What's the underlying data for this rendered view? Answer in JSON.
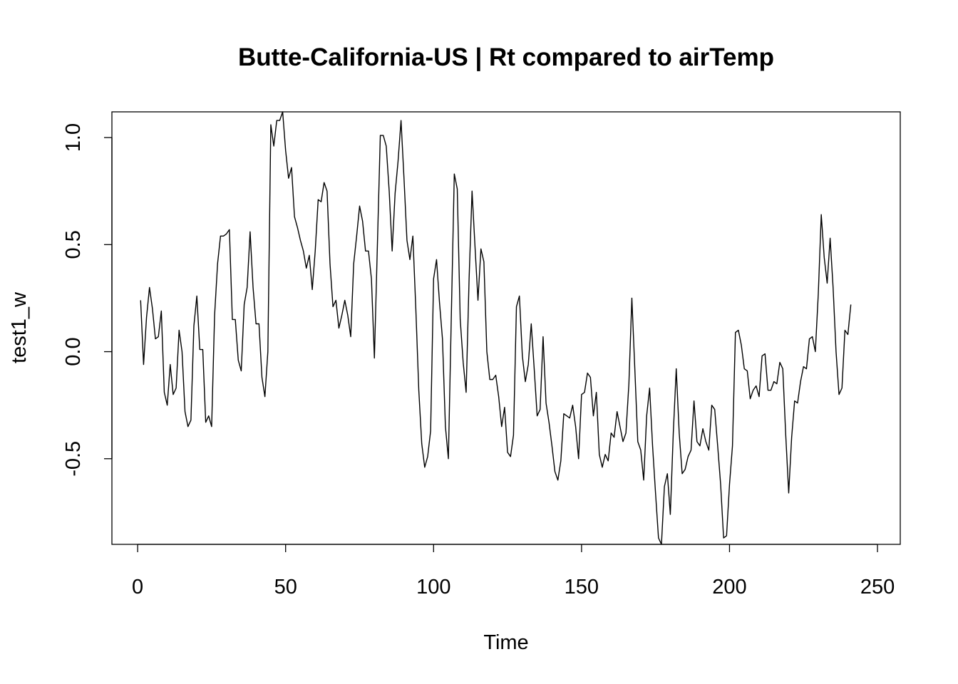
{
  "chart_data": {
    "type": "line",
    "title": "Butte-California-US | Rt compared to airTemp",
    "xlabel": "Time",
    "ylabel": "test1_w",
    "xlim": [
      -8.7,
      257.7
    ],
    "ylim": [
      -0.9,
      1.12
    ],
    "x_ticks": [
      0,
      50,
      100,
      150,
      200,
      250
    ],
    "x_tick_labels": [
      "0",
      "50",
      "100",
      "150",
      "200",
      "250"
    ],
    "y_ticks": [
      -0.5,
      0.0,
      0.5,
      1.0
    ],
    "y_tick_labels": [
      "-0.5",
      "0.0",
      "0.5",
      "1.0"
    ],
    "grid": false,
    "line_color": "#000000",
    "x_start": 1,
    "values": [
      0.24,
      -0.06,
      0.16,
      0.3,
      0.2,
      0.06,
      0.07,
      0.19,
      -0.19,
      -0.25,
      -0.06,
      -0.2,
      -0.17,
      0.1,
      0.0,
      -0.28,
      -0.35,
      -0.32,
      0.12,
      0.26,
      0.01,
      0.01,
      -0.33,
      -0.3,
      -0.35,
      0.17,
      0.41,
      0.54,
      0.54,
      0.55,
      0.57,
      0.15,
      0.15,
      -0.04,
      -0.09,
      0.22,
      0.3,
      0.56,
      0.3,
      0.13,
      0.13,
      -0.12,
      -0.21,
      0.0,
      1.06,
      0.96,
      1.08,
      1.08,
      1.12,
      0.94,
      0.81,
      0.86,
      0.63,
      0.58,
      0.52,
      0.47,
      0.39,
      0.45,
      0.29,
      0.47,
      0.71,
      0.7,
      0.79,
      0.75,
      0.41,
      0.21,
      0.24,
      0.11,
      0.17,
      0.24,
      0.17,
      0.07,
      0.41,
      0.54,
      0.68,
      0.61,
      0.47,
      0.47,
      0.34,
      -0.03,
      0.49,
      1.01,
      1.01,
      0.96,
      0.75,
      0.47,
      0.74,
      0.89,
      1.08,
      0.81,
      0.52,
      0.43,
      0.54,
      0.2,
      -0.18,
      -0.43,
      -0.54,
      -0.49,
      -0.37,
      0.34,
      0.43,
      0.23,
      0.06,
      -0.35,
      -0.5,
      0.17,
      0.83,
      0.76,
      0.15,
      -0.05,
      -0.19,
      0.34,
      0.75,
      0.49,
      0.24,
      0.48,
      0.42,
      0.0,
      -0.13,
      -0.13,
      -0.11,
      -0.21,
      -0.35,
      -0.26,
      -0.47,
      -0.49,
      -0.39,
      0.21,
      0.26,
      -0.02,
      -0.14,
      -0.06,
      0.13,
      -0.08,
      -0.3,
      -0.27,
      0.07,
      -0.24,
      -0.33,
      -0.44,
      -0.56,
      -0.6,
      -0.51,
      -0.29,
      -0.3,
      -0.31,
      -0.25,
      -0.35,
      -0.5,
      -0.2,
      -0.19,
      -0.1,
      -0.12,
      -0.3,
      -0.19,
      -0.48,
      -0.54,
      -0.48,
      -0.51,
      -0.38,
      -0.4,
      -0.28,
      -0.35,
      -0.42,
      -0.38,
      -0.15,
      0.25,
      -0.08,
      -0.42,
      -0.46,
      -0.6,
      -0.3,
      -0.17,
      -0.44,
      -0.66,
      -0.87,
      -0.9,
      -0.63,
      -0.57,
      -0.76,
      -0.38,
      -0.08,
      -0.38,
      -0.57,
      -0.55,
      -0.49,
      -0.46,
      -0.23,
      -0.42,
      -0.44,
      -0.36,
      -0.42,
      -0.46,
      -0.25,
      -0.27,
      -0.44,
      -0.62,
      -0.87,
      -0.86,
      -0.62,
      -0.44,
      0.09,
      0.1,
      0.03,
      -0.08,
      -0.09,
      -0.22,
      -0.18,
      -0.16,
      -0.21,
      -0.02,
      -0.01,
      -0.18,
      -0.18,
      -0.14,
      -0.15,
      -0.05,
      -0.08,
      -0.39,
      -0.66,
      -0.4,
      -0.23,
      -0.24,
      -0.14,
      -0.07,
      -0.08,
      0.06,
      0.07,
      0.0,
      0.27,
      0.64,
      0.44,
      0.32,
      0.53,
      0.3,
      0.0,
      -0.2,
      -0.17,
      0.1,
      0.08,
      0.22
    ]
  }
}
